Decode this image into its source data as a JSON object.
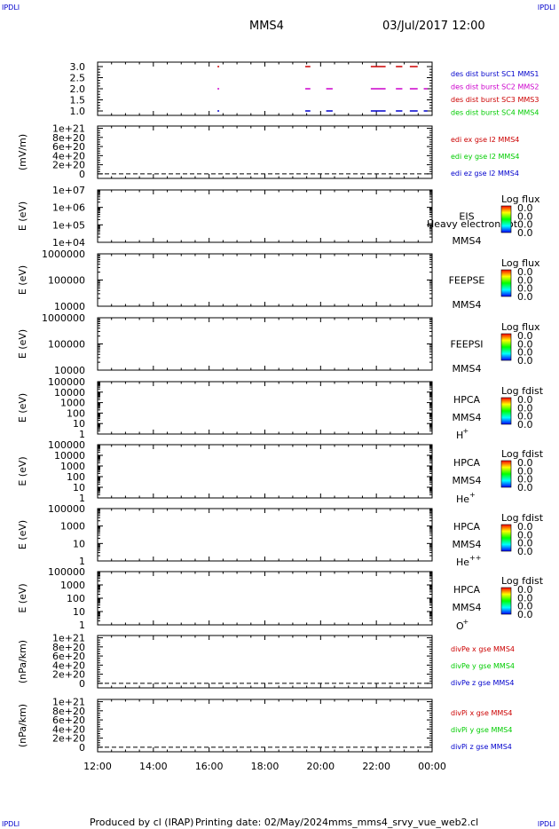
{
  "header": {
    "corner_tl": "IPDLI",
    "corner_tr": "IPDLI",
    "corner_bl": "IPDLI",
    "corner_br": "IPDLI",
    "spacecraft": "MMS4",
    "datetime": "03/Jul/2017 12:00"
  },
  "footer": {
    "produced_by": "Produced by cl (IRAP)",
    "printing_date": "Printing date: 02/May/2024",
    "script_name": "mms_mms4_srvy_vue_web2.cl"
  },
  "colors": {
    "red": "#cc0000",
    "magenta": "#cc00cc",
    "green": "#00cc00",
    "blue": "#0000cc",
    "dashed": "#000000"
  },
  "chart_data": [
    {
      "type": "scatter",
      "id": "burst",
      "y_ticks": [
        "3.0",
        "2.5",
        "2.0",
        "1.5",
        "1.0"
      ],
      "ylim": [
        0.8,
        3.2
      ],
      "xlim": [
        12,
        24
      ],
      "legend": [
        {
          "text": "des dist burst SC1 MMS1",
          "color": "#0000cc"
        },
        {
          "text": "des dist burst SC2 MMS2",
          "color": "#cc00cc"
        },
        {
          "text": "des dist burst SC3 MMS3",
          "color": "#cc0000"
        },
        {
          "text": "des dist burst SC4 MMS4",
          "color": "#00cc00"
        }
      ],
      "series": [
        {
          "y": 3.0,
          "color": "#cc0000",
          "segments": [
            [
              16.3,
              16.33
            ],
            [
              19.45,
              19.6
            ],
            [
              21.8,
              22.3
            ],
            [
              22.7,
              22.9
            ],
            [
              23.2,
              23.45
            ]
          ]
        },
        {
          "y": 2.0,
          "color": "#cc00cc",
          "segments": [
            [
              16.3,
              16.33
            ],
            [
              19.45,
              19.6
            ],
            [
              20.2,
              20.4
            ],
            [
              21.8,
              22.3
            ],
            [
              22.7,
              22.9
            ],
            [
              23.2,
              23.45
            ],
            [
              23.7,
              23.8
            ]
          ]
        },
        {
          "y": 1.0,
          "color": "#0000cc",
          "segments": [
            [
              16.3,
              16.33
            ],
            [
              19.45,
              19.6
            ],
            [
              20.2,
              20.4
            ],
            [
              21.8,
              22.3
            ],
            [
              22.7,
              22.9
            ],
            [
              23.2,
              23.45
            ],
            [
              23.7,
              23.8
            ]
          ]
        }
      ]
    },
    {
      "type": "line",
      "id": "edi",
      "ylabel": "(mV/m)",
      "y_ticks": [
        "1e+21",
        "8e+20",
        "6e+20",
        "4e+20",
        "2e+20",
        "0"
      ],
      "ylim": [
        -0.1,
        1.05
      ],
      "legend": [
        {
          "text": "edi ex gse l2 MMS4",
          "color": "#cc0000"
        },
        {
          "text": "edi ey gse l2 MMS4",
          "color": "#00cc00"
        },
        {
          "text": "edi ez gse l2 MMS4",
          "color": "#0000cc"
        }
      ],
      "dashed_zero": true
    },
    {
      "type": "heatmap",
      "id": "eis",
      "ylabel": "E (eV)",
      "y_ticks": [
        "1e+07",
        "1e+06",
        "1e+05",
        "1e+04"
      ],
      "instrument": "EIS",
      "instrument_extra": "Heavy electron tot",
      "spacecraft": "MMS4",
      "species": "",
      "scale_title": "Log flux",
      "scale_values": [
        "0.0",
        "0.0",
        "0.0",
        "0.0"
      ]
    },
    {
      "type": "heatmap",
      "id": "feepse",
      "ylabel": "E (eV)",
      "y_ticks": [
        "1000000",
        "100000",
        "10000"
      ],
      "instrument": "FEEPSE",
      "instrument_extra": "",
      "spacecraft": "MMS4",
      "species": "",
      "scale_title": "Log flux",
      "scale_values": [
        "0.0",
        "0.0",
        "0.0",
        "0.0"
      ]
    },
    {
      "type": "heatmap",
      "id": "feepsi",
      "ylabel": "E (eV)",
      "y_ticks": [
        "1000000",
        "100000",
        "10000"
      ],
      "instrument": "FEEPSI",
      "instrument_extra": "",
      "spacecraft": "MMS4",
      "species": "",
      "scale_title": "Log flux",
      "scale_values": [
        "0.0",
        "0.0",
        "0.0",
        "0.0"
      ]
    },
    {
      "type": "heatmap",
      "id": "hpca_h",
      "ylabel": "E (eV)",
      "y_ticks": [
        "100000",
        "10000",
        "1000",
        "100",
        "10",
        "1"
      ],
      "instrument": "HPCA",
      "instrument_extra": "",
      "spacecraft": "MMS4",
      "species": "H",
      "species_sup": "+",
      "scale_title": "Log fdist",
      "scale_values": [
        "0.0",
        "0.0",
        "0.0",
        "0.0"
      ]
    },
    {
      "type": "heatmap",
      "id": "hpca_he",
      "ylabel": "E (eV)",
      "y_ticks": [
        "100000",
        "10000",
        "1000",
        "100",
        "10",
        "1"
      ],
      "instrument": "HPCA",
      "instrument_extra": "",
      "spacecraft": "MMS4",
      "species": "He",
      "species_sup": "+",
      "scale_title": "Log fdist",
      "scale_values": [
        "0.0",
        "0.0",
        "0.0",
        "0.0"
      ]
    },
    {
      "type": "heatmap",
      "id": "hpca_hepp",
      "ylabel": "E (eV)",
      "y_ticks": [
        "100000",
        "1000",
        "10",
        "1"
      ],
      "instrument": "HPCA",
      "instrument_extra": "",
      "spacecraft": "MMS4",
      "species": "He",
      "species_sup": "++",
      "scale_title": "Log fdist",
      "scale_values": [
        "0.0",
        "0.0",
        "0.0",
        "0.0"
      ]
    },
    {
      "type": "heatmap",
      "id": "hpca_o",
      "ylabel": "E (eV)",
      "y_ticks": [
        "100000",
        "1000",
        "100",
        "10",
        "1"
      ],
      "instrument": "HPCA",
      "instrument_extra": "",
      "spacecraft": "MMS4",
      "species": "O",
      "species_sup": "+",
      "scale_title": "Log fdist",
      "scale_values": [
        "0.0",
        "0.0",
        "0.0",
        "0.0"
      ]
    },
    {
      "type": "line",
      "id": "divpe",
      "ylabel": "(nPa/km)",
      "y_ticks": [
        "1e+21",
        "8e+20",
        "6e+20",
        "4e+20",
        "2e+20",
        "0"
      ],
      "ylim": [
        -0.1,
        1.05
      ],
      "legend": [
        {
          "text": "divPe x gse MMS4",
          "color": "#cc0000"
        },
        {
          "text": "divPe y gse MMS4",
          "color": "#00cc00"
        },
        {
          "text": "divPe z gse MMS4",
          "color": "#0000cc"
        }
      ],
      "dashed_zero": true
    },
    {
      "type": "line",
      "id": "divpi",
      "ylabel": "(nPa/km)",
      "y_ticks": [
        "1e+21",
        "8e+20",
        "6e+20",
        "4e+20",
        "2e+20",
        "0"
      ],
      "ylim": [
        -0.1,
        1.05
      ],
      "legend": [
        {
          "text": "divPi x gse MMS4",
          "color": "#cc0000"
        },
        {
          "text": "divPi y gse MMS4",
          "color": "#00cc00"
        },
        {
          "text": "divPi z gse MMS4",
          "color": "#0000cc"
        }
      ],
      "dashed_zero": true
    }
  ],
  "x_axis": {
    "ticks": [
      "12:00",
      "14:00",
      "16:00",
      "18:00",
      "20:00",
      "22:00",
      "00:00"
    ],
    "xlim": [
      12,
      24
    ]
  }
}
